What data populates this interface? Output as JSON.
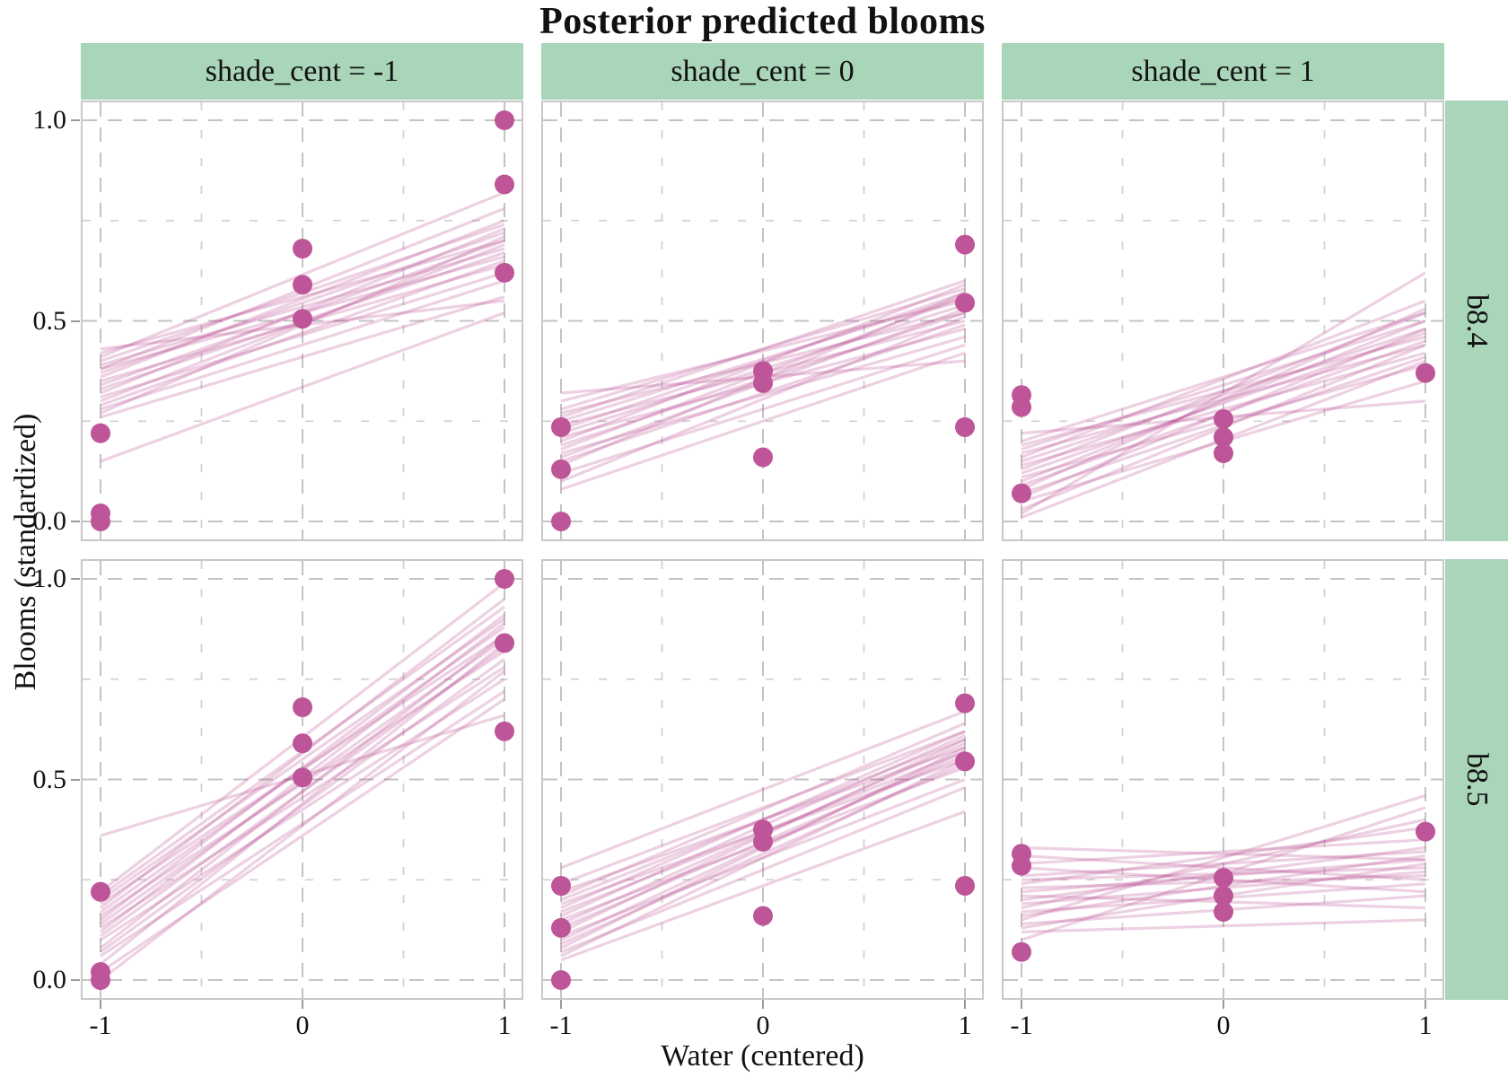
{
  "title": "Posterior predicted blooms",
  "axes": {
    "x_title": "Water (centered)",
    "y_title": "Blooms (standardized)"
  },
  "facets": {
    "columns": [
      "shade_cent = -1",
      "shade_cent = 0",
      "shade_cent = 1"
    ],
    "rows": [
      "b8.4",
      "b8.5"
    ]
  },
  "colors": {
    "strip_fill": "#a9d5b9",
    "point": "#bd5598",
    "posterior_line": "rgba(186,79,148,0.26)",
    "grid_major": "#c3c3c3",
    "grid_minor": "#d2d2d2",
    "panel_border": "#c8c8c8",
    "tick_mark": "#9a9a9a"
  },
  "chart_data": {
    "type": "scatter",
    "title": "Posterior predicted blooms",
    "xlabel": "Water (centered)",
    "ylabel": "Blooms (standardized)",
    "xlim": [
      -1.098,
      1.098
    ],
    "ylim": [
      -0.049,
      1.049
    ],
    "x_tick_values": [
      -1,
      0,
      1
    ],
    "x_tick_labels": [
      "-1",
      "0",
      "1"
    ],
    "y_tick_values": [
      1.0,
      0.5,
      0.0
    ],
    "y_tick_labels": [
      "1.0",
      "0.5",
      "0.0"
    ],
    "x_minor_ticks": [
      -0.5,
      0.5
    ],
    "y_minor_ticks": [
      0.25,
      0.75
    ],
    "grid": "dashed",
    "legend": "none",
    "facet_columns": [
      "shade_cent = -1",
      "shade_cent = 0",
      "shade_cent = 1"
    ],
    "facet_rows": [
      "b8.4",
      "b8.5"
    ],
    "points_by_column": {
      "shade_cent = -1": [
        [
          -1,
          0.22
        ],
        [
          -1,
          0.02
        ],
        [
          -1,
          0.0
        ],
        [
          0,
          0.68
        ],
        [
          0,
          0.59
        ],
        [
          0,
          0.505
        ],
        [
          1,
          1.0
        ],
        [
          1,
          0.84
        ],
        [
          1,
          0.62
        ]
      ],
      "shade_cent = 0": [
        [
          -1,
          0.235
        ],
        [
          -1,
          0.13
        ],
        [
          -1,
          0.0
        ],
        [
          0,
          0.375
        ],
        [
          0,
          0.345
        ],
        [
          0,
          0.16
        ],
        [
          1,
          0.69
        ],
        [
          1,
          0.545
        ],
        [
          1,
          0.235
        ]
      ],
      "shade_cent = 1": [
        [
          -1,
          0.315
        ],
        [
          -1,
          0.285
        ],
        [
          -1,
          0.07
        ],
        [
          0,
          0.255
        ],
        [
          0,
          0.21
        ],
        [
          0,
          0.17
        ],
        [
          1,
          0.37
        ]
      ]
    },
    "posterior_lines_y_at_x_minus1_and_1": {
      "b8.4": {
        "shade_cent = -1": [
          [
            0.43,
            0.55
          ],
          [
            0.42,
            0.7
          ],
          [
            0.41,
            0.82
          ],
          [
            0.4,
            0.74
          ],
          [
            0.39,
            0.68
          ],
          [
            0.38,
            0.78
          ],
          [
            0.38,
            0.66
          ],
          [
            0.37,
            0.72
          ],
          [
            0.36,
            0.75
          ],
          [
            0.35,
            0.64
          ],
          [
            0.34,
            0.7
          ],
          [
            0.33,
            0.67
          ],
          [
            0.32,
            0.73
          ],
          [
            0.31,
            0.62
          ],
          [
            0.3,
            0.69
          ],
          [
            0.29,
            0.65
          ],
          [
            0.28,
            0.6
          ],
          [
            0.27,
            0.71
          ],
          [
            0.26,
            0.56
          ],
          [
            0.15,
            0.52
          ]
        ],
        "shade_cent = 0": [
          [
            0.32,
            0.4
          ],
          [
            0.3,
            0.55
          ],
          [
            0.28,
            0.58
          ],
          [
            0.27,
            0.52
          ],
          [
            0.26,
            0.6
          ],
          [
            0.25,
            0.56
          ],
          [
            0.24,
            0.5
          ],
          [
            0.23,
            0.57
          ],
          [
            0.22,
            0.54
          ],
          [
            0.21,
            0.48
          ],
          [
            0.2,
            0.59
          ],
          [
            0.19,
            0.52
          ],
          [
            0.18,
            0.56
          ],
          [
            0.17,
            0.46
          ],
          [
            0.16,
            0.53
          ],
          [
            0.15,
            0.49
          ],
          [
            0.14,
            0.57
          ],
          [
            0.12,
            0.44
          ],
          [
            0.1,
            0.51
          ],
          [
            0.08,
            0.42
          ]
        ],
        "shade_cent = 1": [
          [
            0.22,
            0.3
          ],
          [
            0.2,
            0.52
          ],
          [
            0.19,
            0.46
          ],
          [
            0.18,
            0.5
          ],
          [
            0.17,
            0.44
          ],
          [
            0.16,
            0.55
          ],
          [
            0.15,
            0.48
          ],
          [
            0.14,
            0.42
          ],
          [
            0.13,
            0.52
          ],
          [
            0.12,
            0.47
          ],
          [
            0.11,
            0.39
          ],
          [
            0.1,
            0.5
          ],
          [
            0.09,
            0.45
          ],
          [
            0.08,
            0.53
          ],
          [
            0.07,
            0.41
          ],
          [
            0.06,
            0.48
          ],
          [
            0.05,
            0.35
          ],
          [
            0.03,
            0.44
          ],
          [
            0.02,
            0.62
          ],
          [
            0.01,
            0.4
          ]
        ]
      },
      "b8.5": {
        "shade_cent = -1": [
          [
            0.36,
            0.66
          ],
          [
            0.22,
            0.99
          ],
          [
            0.21,
            0.93
          ],
          [
            0.2,
            0.9
          ],
          [
            0.19,
            0.86
          ],
          [
            0.18,
            0.95
          ],
          [
            0.17,
            0.88
          ],
          [
            0.16,
            0.82
          ],
          [
            0.15,
            0.91
          ],
          [
            0.14,
            0.85
          ],
          [
            0.13,
            0.78
          ],
          [
            0.12,
            0.89
          ],
          [
            0.11,
            0.83
          ],
          [
            0.1,
            0.75
          ],
          [
            0.08,
            0.86
          ],
          [
            0.07,
            0.8
          ],
          [
            0.06,
            0.72
          ],
          [
            0.04,
            0.84
          ],
          [
            0.02,
            0.7
          ],
          [
            0.0,
            0.77
          ]
        ],
        "shade_cent = 0": [
          [
            0.28,
            0.67
          ],
          [
            0.24,
            0.62
          ],
          [
            0.22,
            0.58
          ],
          [
            0.21,
            0.64
          ],
          [
            0.2,
            0.6
          ],
          [
            0.19,
            0.55
          ],
          [
            0.18,
            0.62
          ],
          [
            0.17,
            0.57
          ],
          [
            0.16,
            0.61
          ],
          [
            0.15,
            0.53
          ],
          [
            0.14,
            0.59
          ],
          [
            0.13,
            0.56
          ],
          [
            0.12,
            0.6
          ],
          [
            0.11,
            0.5
          ],
          [
            0.1,
            0.57
          ],
          [
            0.09,
            0.54
          ],
          [
            0.08,
            0.58
          ],
          [
            0.07,
            0.48
          ],
          [
            0.06,
            0.55
          ],
          [
            0.05,
            0.42
          ]
        ],
        "shade_cent = 1": [
          [
            0.33,
            0.3
          ],
          [
            0.31,
            0.25
          ],
          [
            0.29,
            0.35
          ],
          [
            0.28,
            0.22
          ],
          [
            0.26,
            0.32
          ],
          [
            0.25,
            0.28
          ],
          [
            0.24,
            0.38
          ],
          [
            0.23,
            0.26
          ],
          [
            0.22,
            0.3
          ],
          [
            0.21,
            0.18
          ],
          [
            0.2,
            0.33
          ],
          [
            0.19,
            0.27
          ],
          [
            0.18,
            0.4
          ],
          [
            0.17,
            0.24
          ],
          [
            0.16,
            0.31
          ],
          [
            0.15,
            0.46
          ],
          [
            0.14,
            0.21
          ],
          [
            0.13,
            0.29
          ],
          [
            0.12,
            0.15
          ],
          [
            0.1,
            0.43
          ]
        ]
      }
    }
  }
}
